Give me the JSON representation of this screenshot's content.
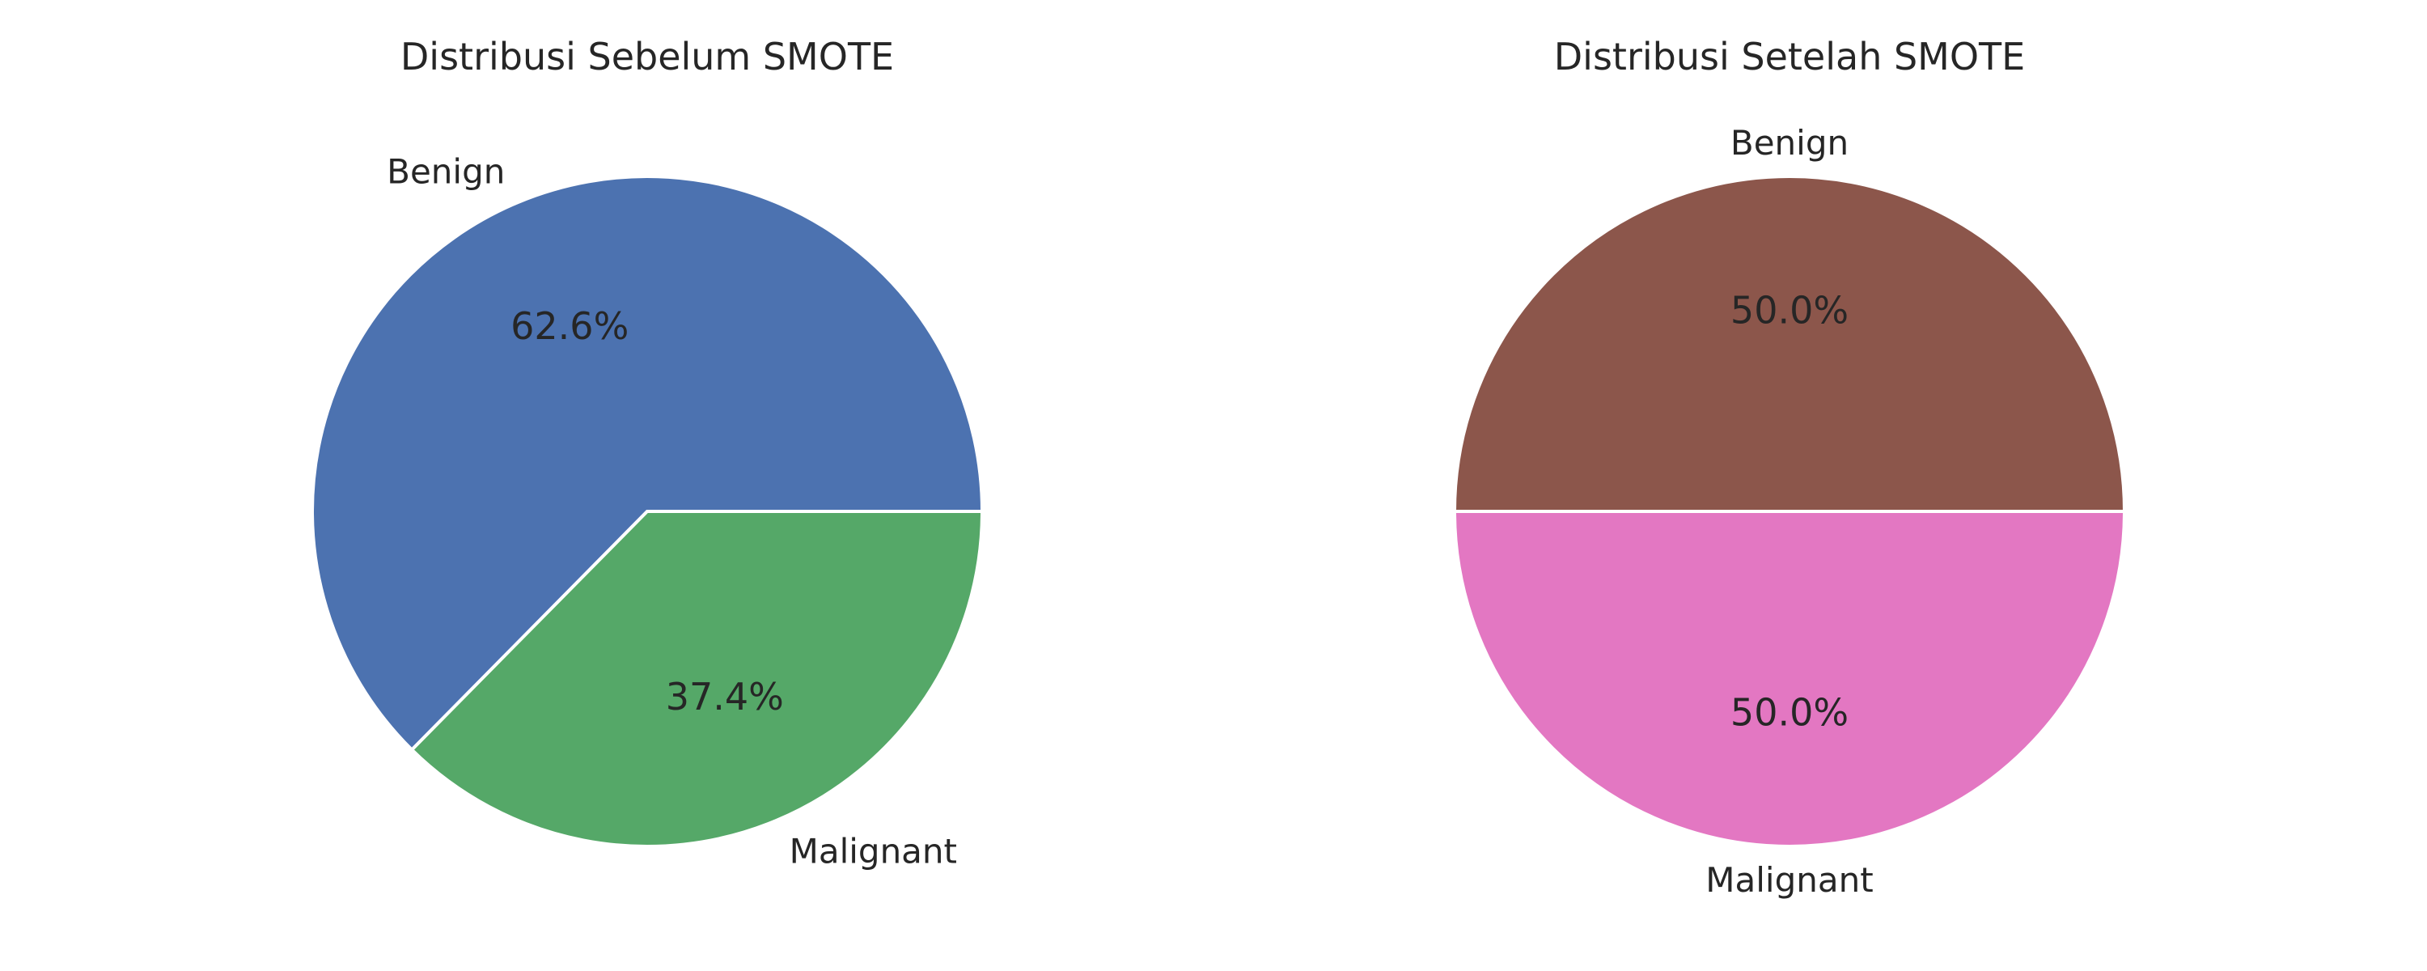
{
  "chart_data": [
    {
      "type": "pie",
      "title": "Distribusi Sebelum SMOTE",
      "categories": [
        "Benign",
        "Malignant"
      ],
      "values": [
        62.6,
        37.4
      ],
      "value_labels": [
        "62.6%",
        "37.4%"
      ],
      "colors": [
        "#4c72b0",
        "#55a868"
      ],
      "start_angle_deg": 0,
      "direction": "counterclockwise",
      "legend": "none"
    },
    {
      "type": "pie",
      "title": "Distribusi Setelah SMOTE",
      "categories": [
        "Benign",
        "Malignant"
      ],
      "values": [
        50.0,
        50.0
      ],
      "value_labels": [
        "50.0%",
        "50.0%"
      ],
      "colors": [
        "#8c564b",
        "#e377c2"
      ],
      "start_angle_deg": 0,
      "direction": "counterclockwise",
      "legend": "none"
    }
  ]
}
